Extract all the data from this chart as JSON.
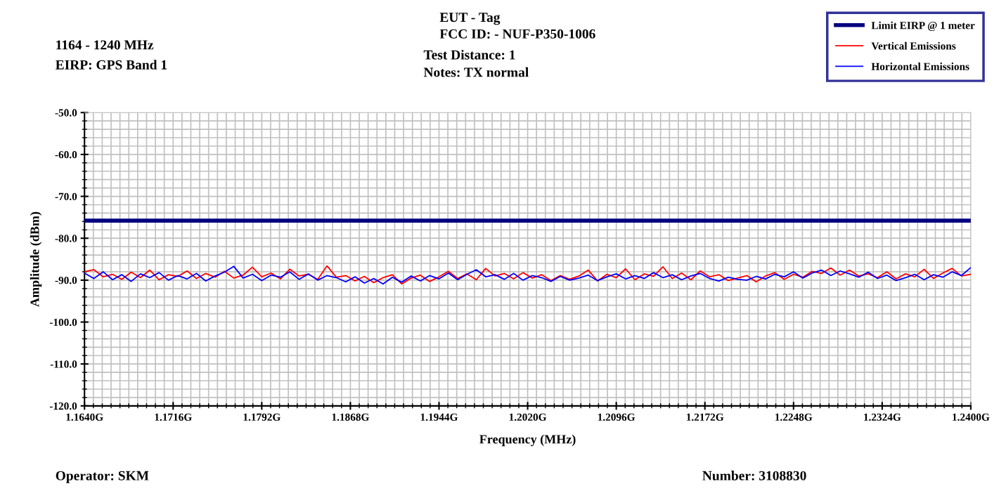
{
  "chart_data": {
    "type": "line",
    "title": "EUT - Tag",
    "subtitle": "FCC ID: - NUF-P350-1006",
    "xlabel": "Frequency (MHz)",
    "ylabel": "Amplitude (dBm)",
    "annotations": [
      "1164 - 1240 MHz",
      "EIRP: GPS Band 1",
      "Test Distance: 1",
      "Notes: TX normal",
      "Operator: SKM",
      "Number: 3108830"
    ],
    "x": [
      1.164,
      1.1648,
      1.1656,
      1.1664,
      1.1672,
      1.168,
      1.1688,
      1.1696,
      1.1704,
      1.1712,
      1.172,
      1.1728,
      1.1736,
      1.1744,
      1.1752,
      1.176,
      1.1768,
      1.1776,
      1.1784,
      1.1792,
      1.18,
      1.1808,
      1.1816,
      1.1824,
      1.1832,
      1.184,
      1.1848,
      1.1856,
      1.1864,
      1.1872,
      1.188,
      1.1888,
      1.1896,
      1.1904,
      1.1912,
      1.192,
      1.1928,
      1.1936,
      1.1944,
      1.1952,
      1.196,
      1.1968,
      1.1976,
      1.1984,
      1.1992,
      1.2,
      1.2008,
      1.2016,
      1.2024,
      1.2032,
      1.204,
      1.2048,
      1.2056,
      1.2064,
      1.2072,
      1.208,
      1.2088,
      1.2096,
      1.2104,
      1.2112,
      1.212,
      1.2128,
      1.2136,
      1.2144,
      1.2152,
      1.216,
      1.2168,
      1.2176,
      1.2184,
      1.2192,
      1.22,
      1.2208,
      1.2216,
      1.2224,
      1.2232,
      1.224,
      1.2248,
      1.2256,
      1.2264,
      1.2272,
      1.228,
      1.2288,
      1.2296,
      1.2304,
      1.2312,
      1.232,
      1.2328,
      1.2336,
      1.2344,
      1.2352,
      1.236,
      1.2368,
      1.2376,
      1.2384,
      1.2392,
      1.24
    ],
    "series": [
      {
        "name": "Limit EIRP @ 1 meter",
        "color": "#000080",
        "x": [
          1.164,
          1.24
        ],
        "values": [
          -75.8,
          -75.8
        ]
      },
      {
        "name": "Vertical Emissions",
        "color": "#ff0000",
        "values": [
          -88.0,
          -87.5,
          -89.2,
          -88.6,
          -89.8,
          -88.1,
          -89.4,
          -87.6,
          -89.9,
          -88.7,
          -89.1,
          -87.8,
          -89.6,
          -88.4,
          -89.3,
          -87.9,
          -89.5,
          -88.8,
          -86.9,
          -89.2,
          -88.3,
          -89.7,
          -87.4,
          -89.0,
          -88.6,
          -89.8,
          -86.6,
          -89.3,
          -88.9,
          -90.2,
          -89.1,
          -90.6,
          -89.4,
          -88.7,
          -90.9,
          -89.5,
          -88.8,
          -90.3,
          -89.2,
          -87.9,
          -89.6,
          -88.5,
          -89.9,
          -87.2,
          -89.0,
          -88.4,
          -89.7,
          -88.2,
          -89.5,
          -88.7,
          -90.1,
          -88.9,
          -89.8,
          -89.0,
          -87.6,
          -90.2,
          -88.6,
          -89.4,
          -87.3,
          -89.9,
          -88.5,
          -89.1,
          -86.8,
          -89.6,
          -88.3,
          -89.9,
          -87.8,
          -89.2,
          -88.7,
          -90.1,
          -89.5,
          -88.9,
          -90.4,
          -89.0,
          -88.2,
          -89.8,
          -88.6,
          -89.3,
          -87.9,
          -88.4,
          -87.1,
          -88.8,
          -87.6,
          -89.0,
          -88.5,
          -89.4,
          -88.0,
          -89.7,
          -88.5,
          -89.2,
          -87.4,
          -89.6,
          -88.3,
          -87.2,
          -89.0,
          -88.6
        ]
      },
      {
        "name": "Horizontal Emissions",
        "color": "#0000ff",
        "values": [
          -88.3,
          -89.6,
          -88.0,
          -89.9,
          -88.7,
          -90.3,
          -88.5,
          -89.4,
          -88.2,
          -90.0,
          -88.9,
          -89.7,
          -88.4,
          -90.2,
          -89.0,
          -88.1,
          -86.7,
          -89.5,
          -88.6,
          -90.1,
          -88.8,
          -89.3,
          -88.0,
          -89.8,
          -88.5,
          -90.0,
          -88.9,
          -89.4,
          -90.4,
          -89.2,
          -90.7,
          -89.6,
          -90.9,
          -89.3,
          -90.5,
          -89.0,
          -90.2,
          -88.9,
          -89.7,
          -88.3,
          -89.9,
          -88.6,
          -87.5,
          -89.2,
          -88.7,
          -89.8,
          -88.4,
          -90.0,
          -88.9,
          -89.4,
          -90.3,
          -89.1,
          -90.0,
          -89.5,
          -88.8,
          -90.1,
          -89.2,
          -88.5,
          -89.7,
          -88.9,
          -89.6,
          -88.2,
          -89.4,
          -88.7,
          -89.9,
          -89.0,
          -88.4,
          -89.6,
          -90.2,
          -89.3,
          -89.8,
          -90.0,
          -89.1,
          -89.7,
          -88.6,
          -89.2,
          -88.0,
          -89.5,
          -88.3,
          -87.6,
          -88.9,
          -87.8,
          -88.5,
          -89.3,
          -88.1,
          -89.6,
          -88.8,
          -90.1,
          -89.4,
          -88.6,
          -89.9,
          -88.7,
          -89.3,
          -88.0,
          -88.9,
          -87.0
        ]
      }
    ],
    "xlim": [
      1.164,
      1.24
    ],
    "xticks": [
      {
        "value": 1.164,
        "label": "1.1640G"
      },
      {
        "value": 1.1716,
        "label": "1.1716G"
      },
      {
        "value": 1.1792,
        "label": "1.1792G"
      },
      {
        "value": 1.1868,
        "label": "1.1868G"
      },
      {
        "value": 1.1944,
        "label": "1.1944G"
      },
      {
        "value": 1.202,
        "label": "1.2020G"
      },
      {
        "value": 1.2096,
        "label": "1.2096G"
      },
      {
        "value": 1.2172,
        "label": "1.2172G"
      },
      {
        "value": 1.2248,
        "label": "1.2248G"
      },
      {
        "value": 1.2324,
        "label": "1.2324G"
      },
      {
        "value": 1.24,
        "label": "1.2400G"
      }
    ],
    "ylim": [
      -120,
      -50
    ],
    "yticks": [
      {
        "value": -120,
        "label": "-120.0"
      },
      {
        "value": -110,
        "label": "-110.0"
      },
      {
        "value": -100,
        "label": "-100.0"
      },
      {
        "value": -90,
        "label": "-90.0"
      },
      {
        "value": -80,
        "label": "-80.0"
      },
      {
        "value": -70,
        "label": "-70.0"
      },
      {
        "value": -60,
        "label": "-60.0"
      },
      {
        "value": -50,
        "label": "-50.0"
      }
    ],
    "grid": true,
    "legend": "top right",
    "marker": "none",
    "line_style": "solid"
  }
}
